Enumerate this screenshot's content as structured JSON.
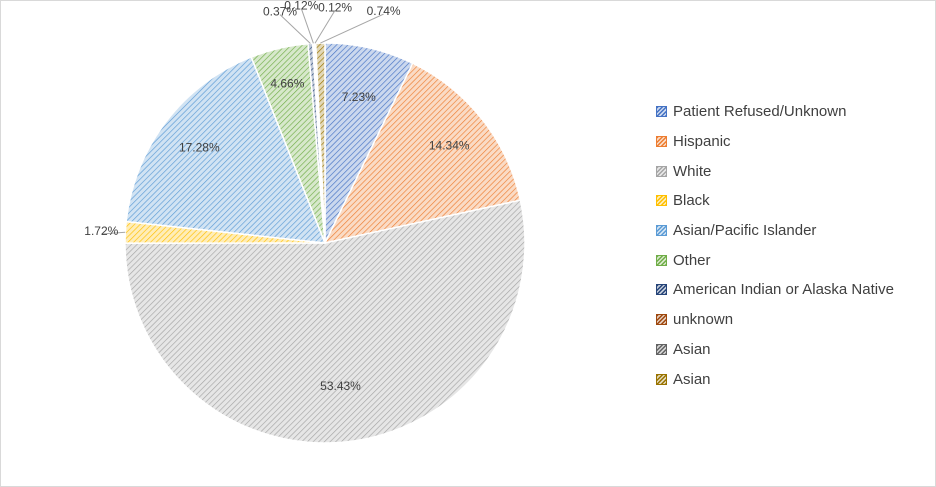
{
  "chart_data": {
    "type": "pie",
    "title": "",
    "legend_position": "right",
    "slices": [
      {
        "name": "Patient Refused/Unknown",
        "value": 7.23,
        "label": "7.23%",
        "color": "#4472c4"
      },
      {
        "name": "Hispanic",
        "value": 14.34,
        "label": "14.34%",
        "color": "#ed7d31"
      },
      {
        "name": "White",
        "value": 53.43,
        "label": "53.43%",
        "color": "#a5a5a5"
      },
      {
        "name": "Black",
        "value": 1.72,
        "label": "1.72%",
        "color": "#ffc000"
      },
      {
        "name": "Asian/Pacific Islander",
        "value": 17.28,
        "label": "17.28%",
        "color": "#5b9bd5"
      },
      {
        "name": "Other",
        "value": 4.66,
        "label": "4.66%",
        "color": "#70ad47"
      },
      {
        "name": "American Indian or Alaska Native",
        "value": 0.37,
        "label": "0.37%",
        "color": "#264478"
      },
      {
        "name": "unknown",
        "value": 0.12,
        "label": "0.12%",
        "color": "#9e480e"
      },
      {
        "name": "Asian",
        "value": 0.12,
        "label": "0.12%",
        "color": "#636363"
      },
      {
        "name": "Asian",
        "value": 0.74,
        "label": "0.74%",
        "color": "#997300"
      }
    ]
  }
}
